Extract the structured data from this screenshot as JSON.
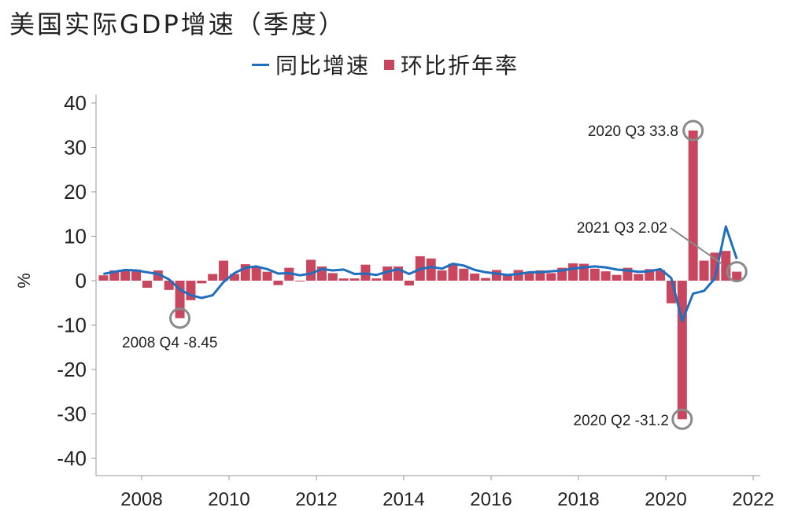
{
  "chart_data": {
    "type": "bar+line",
    "title": "美国实际GDP增速（季度）",
    "ylabel": "%",
    "xlabel": "",
    "ylim": [
      -40,
      40
    ],
    "yticks": [
      40,
      30,
      20,
      10,
      0,
      -10,
      -20,
      -30,
      -40
    ],
    "xticks": [
      "2008",
      "2010",
      "2012",
      "2014",
      "2016",
      "2018",
      "2020",
      "2022"
    ],
    "legend_position": "top-center",
    "grid": false,
    "colors": {
      "bar": "#c8475f",
      "line": "#1f6fbf",
      "annotation": "#8a8a8a"
    },
    "start": "2007 Q1",
    "series": [
      {
        "name": "同比增速",
        "type": "line",
        "values": [
          1.5,
          2.0,
          2.4,
          2.3,
          1.9,
          1.5,
          0.3,
          -2.0,
          -3.3,
          -3.9,
          -3.3,
          -0.3,
          1.7,
          2.9,
          3.2,
          2.6,
          1.6,
          1.7,
          1.2,
          1.6,
          2.6,
          2.3,
          2.5,
          1.5,
          1.6,
          1.3,
          2.0,
          2.6,
          1.5,
          2.6,
          3.1,
          2.7,
          3.8,
          3.4,
          2.4,
          1.9,
          1.6,
          1.3,
          1.5,
          1.9,
          1.9,
          2.1,
          2.3,
          2.7,
          3.0,
          3.2,
          3.0,
          2.5,
          2.3,
          2.0,
          2.1,
          2.6,
          0.6,
          -9.1,
          -2.9,
          -2.3,
          0.5,
          12.2,
          4.9
        ]
      },
      {
        "name": "环比折年率",
        "type": "bar",
        "values": [
          1.2,
          2.3,
          2.2,
          2.5,
          -1.6,
          2.3,
          -2.1,
          -8.45,
          -4.4,
          -0.6,
          1.5,
          4.5,
          1.5,
          3.7,
          3.0,
          2.0,
          -1.0,
          2.9,
          -0.1,
          4.7,
          3.2,
          1.7,
          0.5,
          0.5,
          3.6,
          0.5,
          3.2,
          3.2,
          -1.1,
          5.5,
          5.0,
          2.3,
          3.8,
          2.7,
          1.6,
          0.6,
          2.4,
          1.2,
          2.4,
          2.0,
          2.3,
          1.7,
          2.9,
          3.9,
          3.8,
          2.7,
          2.1,
          1.3,
          2.9,
          1.5,
          2.6,
          2.4,
          -5.1,
          -31.2,
          33.8,
          4.5,
          6.3,
          6.7,
          2.02
        ]
      }
    ],
    "annotations": [
      {
        "text": "2008 Q4 -8.45",
        "quarter_index": 7,
        "value": -8.45
      },
      {
        "text": "2020 Q2 -31.2",
        "quarter_index": 53,
        "value": -31.2
      },
      {
        "text": "2020 Q3 33.8",
        "quarter_index": 54,
        "value": 33.8
      },
      {
        "text": "2021 Q3 2.02",
        "quarter_index": 58,
        "value": 2.02
      }
    ]
  }
}
